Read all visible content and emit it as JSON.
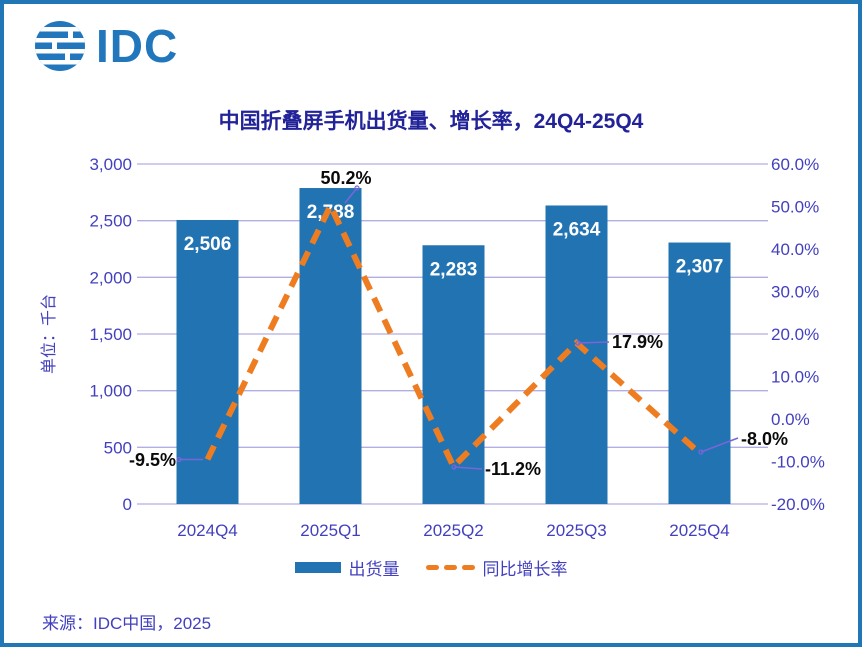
{
  "logo": {
    "text": "IDC"
  },
  "title": "中国折叠屏手机出货量、增长率，24Q4-25Q4",
  "source": "来源：IDC中国，2025",
  "colors": {
    "bar": "#2273B2",
    "line": "#EE7D22",
    "axis_text": "#4340BF",
    "grid": "#B2ADE2",
    "title": "#222299",
    "annotation": "#0A0A0A",
    "leader": "#7766D8",
    "border": "#2176B5",
    "logo": "#2176BC",
    "bar_label": "#FFFFFF"
  },
  "chart_data": {
    "type": "bar+line combo",
    "title": "中国折叠屏手机出货量、增长率，24Q4-25Q4",
    "categories": [
      "2024Q4",
      "2025Q1",
      "2025Q2",
      "2025Q3",
      "2025Q4"
    ],
    "series": [
      {
        "name": "出货量",
        "type": "bar",
        "axis": "left",
        "values": [
          2506,
          2788,
          2283,
          2634,
          2307
        ],
        "labels": [
          "2,506",
          "2,788",
          "2,283",
          "2,634",
          "2,307"
        ]
      },
      {
        "name": "同比增长率",
        "type": "line",
        "axis": "right",
        "style": "dashed",
        "values": [
          -9.5,
          50.2,
          -11.2,
          17.9,
          -8.0
        ],
        "labels": [
          "-9.5%",
          "50.2%",
          "-11.2%",
          "17.9%",
          "-8.0%"
        ]
      }
    ],
    "left_axis": {
      "title": "单位：千台",
      "min": 0,
      "max": 3000,
      "step": 500,
      "ticks": [
        "0",
        "500",
        "1,000",
        "1,500",
        "2,000",
        "2,500",
        "3,000"
      ]
    },
    "right_axis": {
      "min": -20,
      "max": 60,
      "step": 10,
      "ticks": [
        "-20.0%",
        "-10.0%",
        "0.0%",
        "10.0%",
        "20.0%",
        "30.0%",
        "40.0%",
        "50.0%",
        "60.0%"
      ]
    },
    "grid": true,
    "legend_position": "bottom"
  }
}
